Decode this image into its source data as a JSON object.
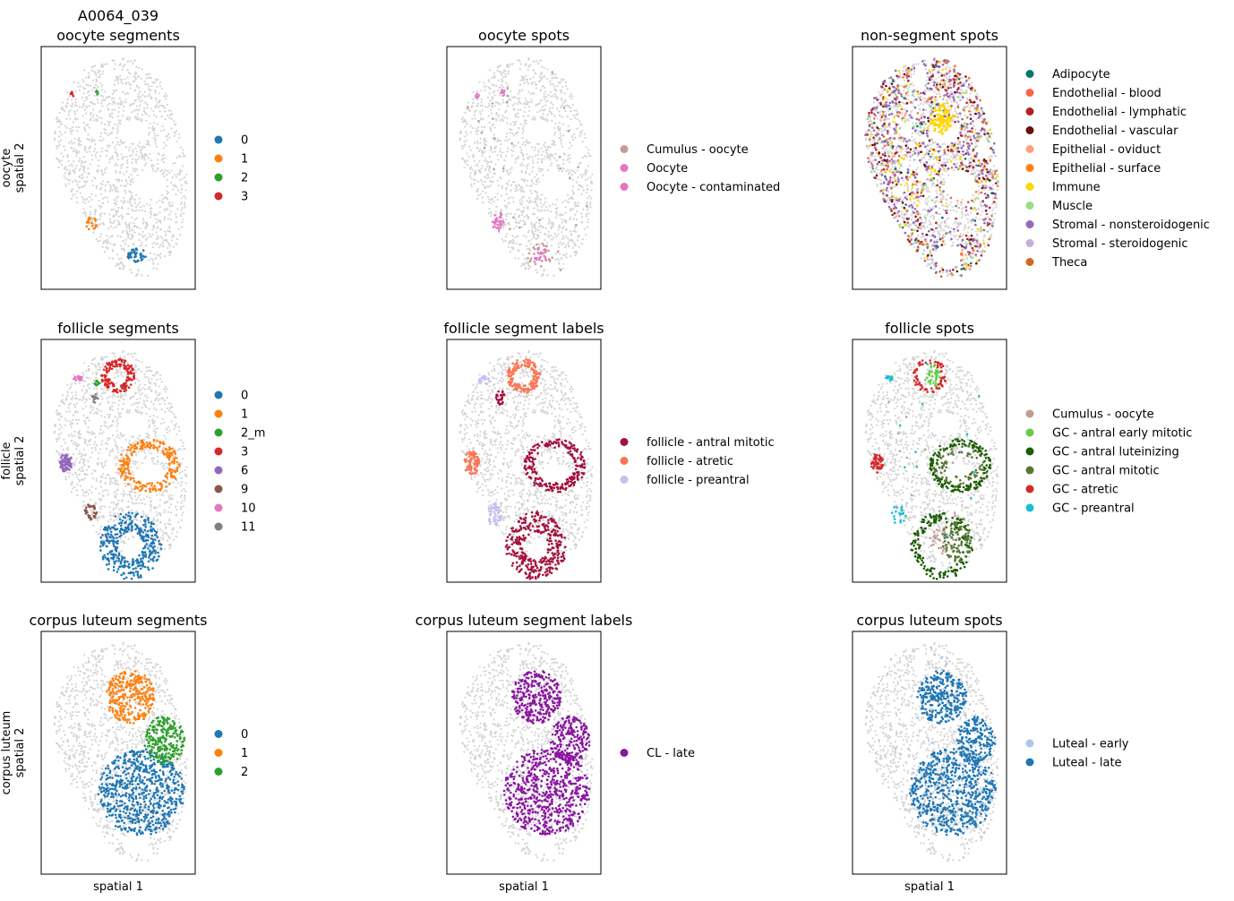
{
  "figure_title": "A0064_039",
  "chart_data": [
    {
      "type": "scatter",
      "title": "oocyte segments",
      "xlabel": "",
      "ylabel": [
        "oocyte",
        "spatial 2"
      ],
      "legend": "right",
      "legend_entries": [
        {
          "label": "0",
          "color": "#1f77b4"
        },
        {
          "label": "1",
          "color": "#ff7f0e"
        },
        {
          "label": "2",
          "color": "#2ca02c"
        },
        {
          "label": "3",
          "color": "#d62728"
        }
      ]
    },
    {
      "type": "scatter",
      "title": "oocyte spots",
      "xlabel": "",
      "ylabel": [],
      "legend": "right",
      "legend_entries": [
        {
          "label": "Cumulus - oocyte",
          "color": "#c49c94"
        },
        {
          "label": "Oocyte",
          "color": "#e377c2"
        },
        {
          "label": "Oocyte - contaminated",
          "color": "#e377c2"
        }
      ]
    },
    {
      "type": "scatter",
      "title": "non-segment spots",
      "xlabel": "",
      "ylabel": [],
      "legend": "right",
      "legend_entries": [
        {
          "label": "Adipocyte",
          "color": "#00786b"
        },
        {
          "label": "Endothelial - blood",
          "color": "#ff6347"
        },
        {
          "label": "Endothelial - lymphatic",
          "color": "#b22222"
        },
        {
          "label": "Endothelial - vascular",
          "color": "#6b0f0f"
        },
        {
          "label": "Epithelial - oviduct",
          "color": "#ffa07a"
        },
        {
          "label": "Epithelial - surface",
          "color": "#ff7f0e"
        },
        {
          "label": "Immune",
          "color": "#ffd700"
        },
        {
          "label": "Muscle",
          "color": "#98df8a"
        },
        {
          "label": "Stromal - nonsteroidogenic",
          "color": "#9467bd"
        },
        {
          "label": "Stromal - steroidogenic",
          "color": "#c5b0d5"
        },
        {
          "label": "Theca",
          "color": "#d2691e"
        }
      ]
    },
    {
      "type": "scatter",
      "title": "follicle segments",
      "xlabel": "",
      "ylabel": [
        "follicle",
        "spatial 2"
      ],
      "legend": "right",
      "legend_entries": [
        {
          "label": "0",
          "color": "#1f77b4"
        },
        {
          "label": "1",
          "color": "#ff7f0e"
        },
        {
          "label": "2_m",
          "color": "#2ca02c"
        },
        {
          "label": "3",
          "color": "#d62728"
        },
        {
          "label": "6",
          "color": "#9467bd"
        },
        {
          "label": "9",
          "color": "#8c564b"
        },
        {
          "label": "10",
          "color": "#e377c2"
        },
        {
          "label": "11",
          "color": "#7f7f7f"
        }
      ]
    },
    {
      "type": "scatter",
      "title": "follicle segment labels",
      "xlabel": "",
      "ylabel": [],
      "legend": "right",
      "legend_entries": [
        {
          "label": "follicle - antral mitotic",
          "color": "#a50f3c"
        },
        {
          "label": "follicle - atretic",
          "color": "#fa7553"
        },
        {
          "label": "follicle - preantral",
          "color": "#c8bef0"
        }
      ]
    },
    {
      "type": "scatter",
      "title": "follicle spots",
      "xlabel": "",
      "ylabel": [],
      "legend": "right",
      "legend_entries": [
        {
          "label": "Cumulus - oocyte",
          "color": "#c49c94"
        },
        {
          "label": "GC - antral early mitotic",
          "color": "#66cc44"
        },
        {
          "label": "GC - antral luteinizing",
          "color": "#1a5c00"
        },
        {
          "label": "GC - antral mitotic",
          "color": "#557733"
        },
        {
          "label": "GC - atretic",
          "color": "#d62728"
        },
        {
          "label": "GC - preantral",
          "color": "#17becf"
        }
      ]
    },
    {
      "type": "scatter",
      "title": "corpus luteum segments",
      "xlabel": "spatial 1",
      "ylabel": [
        "corpus luteum",
        "spatial 2"
      ],
      "legend": "right",
      "legend_entries": [
        {
          "label": "0",
          "color": "#1f77b4"
        },
        {
          "label": "1",
          "color": "#ff7f0e"
        },
        {
          "label": "2",
          "color": "#2ca02c"
        }
      ]
    },
    {
      "type": "scatter",
      "title": "corpus luteum segment labels",
      "xlabel": "spatial 1",
      "ylabel": [],
      "legend": "right",
      "legend_entries": [
        {
          "label": "CL - late",
          "color": "#8a15a0"
        }
      ]
    },
    {
      "type": "scatter",
      "title": "corpus luteum spots",
      "xlabel": "spatial 1",
      "ylabel": [],
      "legend": "right",
      "legend_entries": [
        {
          "label": "Luteal - early",
          "color": "#aec7e8"
        },
        {
          "label": "Luteal - late",
          "color": "#1f77b4"
        }
      ]
    }
  ]
}
